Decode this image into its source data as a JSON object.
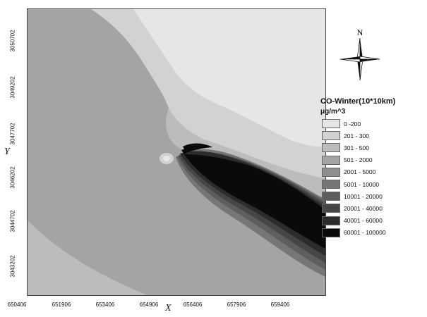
{
  "map": {
    "x_axis_letter": "X",
    "y_axis_letter": "Y",
    "x_ticks": [
      "650406",
      "651906",
      "653406",
      "654906",
      "656406",
      "657906",
      "659406"
    ],
    "y_ticks": [
      "3050702",
      "3049202",
      "3047702",
      "3046202",
      "3044702",
      "3043202"
    ]
  },
  "north_arrow": {
    "label": "N",
    "icon": "compass-rose-icon"
  },
  "legend": {
    "title": "CO-Winter(10*10km)",
    "unit": "μg/m^3",
    "classes": [
      {
        "label": "0 -200",
        "color": "#e6e6e6"
      },
      {
        "label": "201 - 300",
        "color": "#d2d2d2"
      },
      {
        "label": "301 - 500",
        "color": "#bcbcbc"
      },
      {
        "label": "501 - 2000",
        "color": "#a4a4a4"
      },
      {
        "label": "2001 - 5000",
        "color": "#8e8e8e"
      },
      {
        "label": "5001 - 10000",
        "color": "#767676"
      },
      {
        "label": "10001 - 20000",
        "color": "#5e5e5e"
      },
      {
        "label": "20001 - 40000",
        "color": "#464646"
      },
      {
        "label": "40001 - 60000",
        "color": "#2c2c2c"
      },
      {
        "label": "60001 - 100000",
        "color": "#0a0a0a"
      }
    ]
  }
}
